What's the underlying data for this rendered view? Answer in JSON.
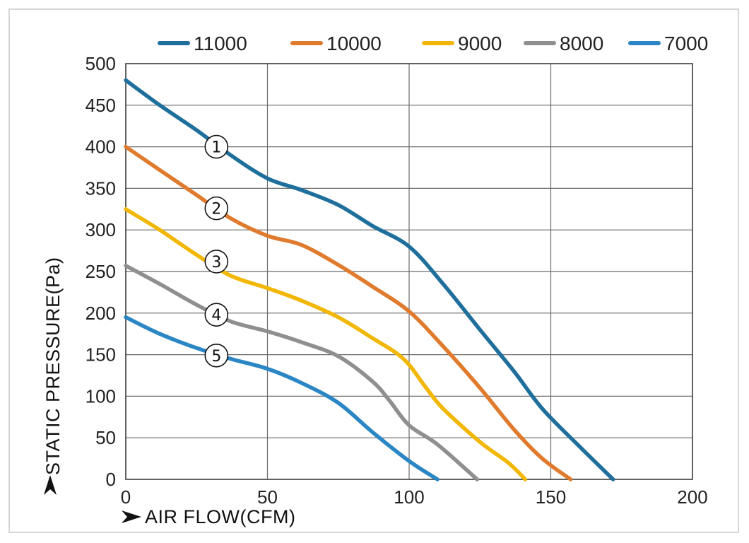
{
  "chart_data": {
    "type": "line",
    "title": "",
    "xlabel": "AIR FLOW(CFM)",
    "ylabel": "STATIC PRESSURE(Pa)",
    "xlim": [
      0,
      200
    ],
    "ylim": [
      0,
      500
    ],
    "x_ticks": [
      "0",
      "50",
      "100",
      "150",
      "200"
    ],
    "y_ticks": [
      "0",
      "50",
      "100",
      "150",
      "200",
      "250",
      "300",
      "350",
      "400",
      "450",
      "500"
    ],
    "grid": true,
    "legend_position": "top",
    "series": [
      {
        "name": "11000",
        "color": "#1f6f9c",
        "curve_label": "①",
        "label_at": [
          32,
          400
        ],
        "points": [
          [
            0,
            480
          ],
          [
            12,
            450
          ],
          [
            25,
            420
          ],
          [
            37,
            390
          ],
          [
            50,
            362
          ],
          [
            62,
            348
          ],
          [
            75,
            330
          ],
          [
            87,
            305
          ],
          [
            100,
            280
          ],
          [
            112,
            235
          ],
          [
            125,
            180
          ],
          [
            137,
            130
          ],
          [
            147,
            85
          ],
          [
            160,
            40
          ],
          [
            172,
            0
          ]
        ]
      },
      {
        "name": "10000",
        "color": "#e07b2e",
        "curve_label": "②",
        "label_at": [
          32,
          326
        ],
        "points": [
          [
            0,
            400
          ],
          [
            12,
            372
          ],
          [
            25,
            342
          ],
          [
            37,
            314
          ],
          [
            50,
            293
          ],
          [
            62,
            282
          ],
          [
            75,
            258
          ],
          [
            87,
            232
          ],
          [
            100,
            202
          ],
          [
            112,
            160
          ],
          [
            125,
            110
          ],
          [
            137,
            60
          ],
          [
            147,
            25
          ],
          [
            157,
            0
          ]
        ]
      },
      {
        "name": "9000",
        "color": "#f2b705",
        "curve_label": "③",
        "label_at": [
          32,
          262
        ],
        "points": [
          [
            0,
            325
          ],
          [
            12,
            300
          ],
          [
            25,
            270
          ],
          [
            37,
            245
          ],
          [
            50,
            230
          ],
          [
            62,
            215
          ],
          [
            75,
            195
          ],
          [
            87,
            170
          ],
          [
            98,
            145
          ],
          [
            106,
            110
          ],
          [
            112,
            85
          ],
          [
            125,
            45
          ],
          [
            135,
            20
          ],
          [
            141,
            0
          ]
        ]
      },
      {
        "name": "8000",
        "color": "#8f8f8f",
        "curve_label": "④",
        "label_at": [
          32,
          198
        ],
        "points": [
          [
            0,
            257
          ],
          [
            12,
            235
          ],
          [
            25,
            210
          ],
          [
            37,
            190
          ],
          [
            50,
            178
          ],
          [
            62,
            165
          ],
          [
            75,
            148
          ],
          [
            87,
            118
          ],
          [
            93,
            95
          ],
          [
            100,
            65
          ],
          [
            110,
            42
          ],
          [
            124,
            0
          ]
        ]
      },
      {
        "name": "7000",
        "color": "#2a86c4",
        "curve_label": "⑤",
        "label_at": [
          32,
          149
        ],
        "points": [
          [
            0,
            195
          ],
          [
            12,
            175
          ],
          [
            25,
            158
          ],
          [
            37,
            145
          ],
          [
            50,
            133
          ],
          [
            62,
            116
          ],
          [
            75,
            92
          ],
          [
            87,
            57
          ],
          [
            100,
            22
          ],
          [
            110,
            0
          ]
        ]
      }
    ]
  }
}
